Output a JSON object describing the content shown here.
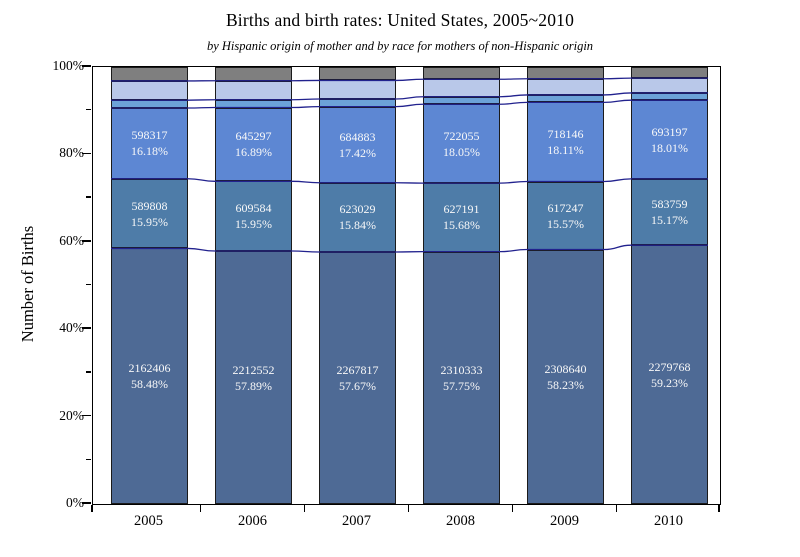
{
  "title": "Births and birth rates: United States, 2005~2010",
  "subtitle": "by Hispanic origin of mother and by race for mothers of non-Hispanic origin",
  "y_axis": {
    "label": "Number of Births",
    "major_tick_percents": [
      0,
      20,
      40,
      60,
      80,
      100
    ],
    "major_tick_labels": [
      "0%",
      "20%",
      "40%",
      "60%",
      "80%",
      "100%"
    ],
    "minor_tick_percents": [
      10,
      30,
      50,
      70,
      90
    ],
    "range": [
      0,
      100
    ]
  },
  "x_axis": {
    "categories": [
      "2005",
      "2006",
      "2007",
      "2008",
      "2009",
      "2010"
    ]
  },
  "chart_data": {
    "type": "bar",
    "stacked": true,
    "units": "percent of births",
    "categories": [
      "2005",
      "2006",
      "2007",
      "2008",
      "2009",
      "2010"
    ],
    "series": [
      {
        "name": "bottom-dark-blue-segment",
        "labeled": true,
        "color": "#4e6a95",
        "values": [
          2162406,
          2212552,
          2267817,
          2310333,
          2308640,
          2279768
        ],
        "percent_labels": [
          "58.48%",
          "57.89%",
          "57.67%",
          "57.75%",
          "58.23%",
          "59.23%"
        ],
        "percents": [
          58.48,
          57.89,
          57.67,
          57.75,
          58.23,
          59.23
        ]
      },
      {
        "name": "second-steel-blue-segment",
        "labeled": true,
        "color": "#4e7ca8",
        "values": [
          589808,
          609584,
          623029,
          627191,
          617247,
          583759
        ],
        "percent_labels": [
          "15.95%",
          "15.95%",
          "15.84%",
          "15.68%",
          "15.57%",
          "15.17%"
        ],
        "percents": [
          15.95,
          15.95,
          15.84,
          15.68,
          15.57,
          15.17
        ]
      },
      {
        "name": "third-cornflower-blue-segment",
        "labeled": true,
        "color": "#5d87d3",
        "values": [
          598317,
          645297,
          684883,
          722055,
          718146,
          693197
        ],
        "percent_labels": [
          "16.18%",
          "16.89%",
          "17.42%",
          "18.05%",
          "18.11%",
          "18.01%"
        ],
        "percents": [
          16.18,
          16.89,
          17.42,
          18.05,
          18.11,
          18.01
        ]
      },
      {
        "name": "fourth-sky-blue-segment-unlabeled",
        "labeled": false,
        "color": "#6ca2d8",
        "percents": [
          1.8,
          1.78,
          1.75,
          1.72,
          1.7,
          1.65
        ]
      },
      {
        "name": "fifth-pale-blue-segment-unlabeled",
        "labeled": false,
        "color": "#b9c8e9",
        "percents": [
          4.4,
          4.35,
          4.25,
          4.0,
          3.7,
          3.4
        ]
      },
      {
        "name": "top-gray-segment-unlabeled",
        "labeled": false,
        "color": "#7f7f7f",
        "percents": [
          3.19,
          3.14,
          3.07,
          2.8,
          2.69,
          2.54
        ]
      }
    ],
    "connector_line_color": "#22228e",
    "legend": "none",
    "grid": "off",
    "ylim": [
      0,
      100
    ]
  }
}
